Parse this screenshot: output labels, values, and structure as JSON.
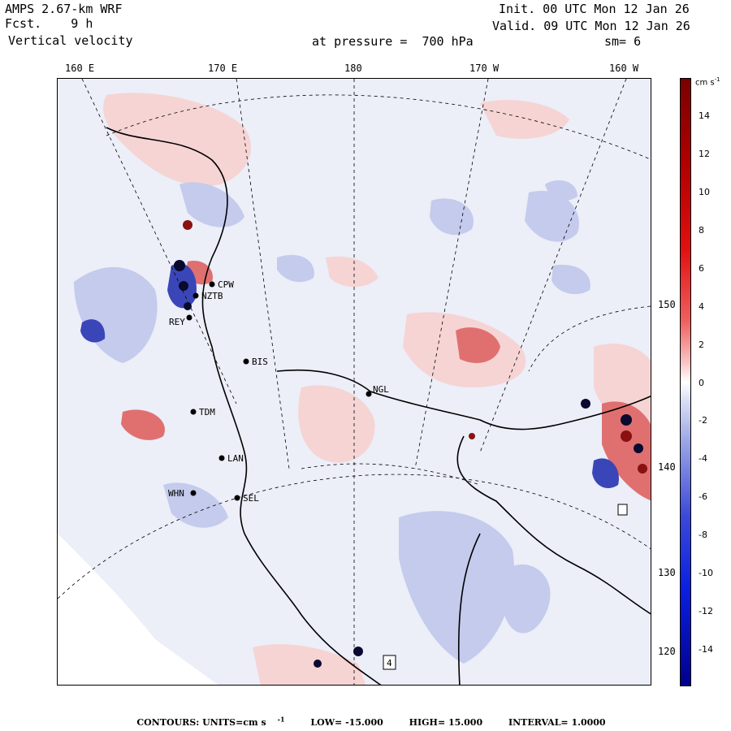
{
  "header": {
    "model": "AMPS 2.67-km WRF",
    "fcst_label": "Fcst.",
    "fcst_value": "9 h",
    "field": "Vertical velocity",
    "init": "Init. 00 UTC Mon 12 Jan 26",
    "valid": "Valid. 09 UTC Mon 12 Jan 26",
    "pressure_text": "at pressure =  700 hPa",
    "smoothing": "sm= 6"
  },
  "map": {
    "lon_labels": [
      "160 E",
      "170 E",
      "180",
      "170 W",
      "160 W"
    ],
    "lat_labels": [
      "150 W",
      "140 W",
      "130 W",
      "120 W"
    ],
    "stations": [
      {
        "code": "CPW"
      },
      {
        "code": "NZTB"
      },
      {
        "code": "REY"
      },
      {
        "code": "BIS"
      },
      {
        "code": "NGL"
      },
      {
        "code": "TDM"
      },
      {
        "code": "LAN"
      },
      {
        "code": "WHN"
      },
      {
        "code": "SEL"
      }
    ],
    "box_labels": [
      "4"
    ],
    "colors": {
      "strong_up": "#8b0000",
      "up": "#e06060",
      "weak_up": "#f8dada",
      "neutral": "#eceef8",
      "weak_down": "#c8cdee",
      "down": "#5a66d4",
      "strong_down": "#00008b"
    }
  },
  "colorbar": {
    "unit_text": "cm s",
    "unit_exponent": "-1",
    "ticks": [
      "14",
      "12",
      "10",
      "8",
      "6",
      "4",
      "2",
      "0",
      "-2",
      "-4",
      "-6",
      "-8",
      "-10",
      "-12",
      "-14"
    ]
  },
  "footer": {
    "contours_text": "CONTOURS:  UNITS=cm s",
    "units_exponent": "-1",
    "low_text": "LOW=  -15.000",
    "high_text": "HIGH=  15.000",
    "interval_text": "INTERVAL=   1.0000"
  }
}
